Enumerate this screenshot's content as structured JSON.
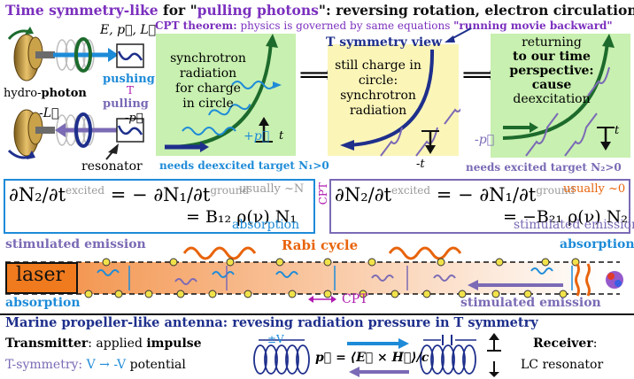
{
  "title": {
    "part1": "Time symmetry-like",
    "part2": " for \"",
    "part3": "pulling photons",
    "part4": "\": reversing rotation, electron circulation"
  },
  "left_panel": {
    "hydro": "hydro-",
    "photon": "photon",
    "e_p_l": "E, p⃗, L⃗",
    "pushing": "pushing",
    "t_symbol": "T",
    "pulling": "pulling",
    "neg_l": "-L⃗",
    "neg_p": "-p⃗",
    "resonator": "resonator"
  },
  "cpt_header": {
    "label": "CPT theorem:",
    "text": " physics is governed by same equations ",
    "quote": "\"running movie backward\""
  },
  "panel1": {
    "text": [
      "synchrotron",
      "radiation",
      "for charge",
      "in circle"
    ],
    "plus_p": "+p⃗",
    "t_label": "t",
    "footer": "needs deexcited target N₁>0"
  },
  "panel2": {
    "header": "T symmetry view",
    "text": [
      "still charge in",
      "circle:",
      "synchrotron",
      "radiation"
    ],
    "t_label": "-t"
  },
  "panel3": {
    "text": [
      "returning",
      "to our time",
      "perspective:",
      "cause",
      "deexcitation"
    ],
    "bold_words": [
      "our time",
      "perspective",
      "cause"
    ],
    "neg_p": "-p⃗",
    "t_label": "t",
    "footer": "needs excited target N₂>0"
  },
  "equation_left": {
    "lhs": "∂N₂/∂t",
    "sup1": "excited",
    "mid": "∂N₁/∂t",
    "sup2": "ground",
    "rhs": "= B₁₂ ρ(ν) N₁",
    "note": "usually ~N",
    "label": "absorption"
  },
  "equation_right": {
    "lhs": "∂N₂/∂t",
    "sup1": "excited",
    "mid": "∂N₁/∂t",
    "sup2": "ground",
    "rhs": "= −B₂₁ ρ(ν) N₂",
    "note": "usually ~0",
    "label": "stimulated emission"
  },
  "cpt_vertical": "CPT",
  "rabi": {
    "stimulated_top": "stimulated emission",
    "rabi_label": "Rabi cycle",
    "absorption_top": "absorption",
    "laser": "laser",
    "absorption_bottom": "absorption",
    "cpt_bottom": "CPT",
    "stimulated_bottom": "stimulated emission"
  },
  "bottom": {
    "headline": "Marine propeller-like antenna: revesing radiation pressure in T symmetry",
    "transmitter": "Transmitter",
    "transmitter_rest": ": applied ",
    "impulse": "impulse",
    "tsym_label": "T-symmetry: ",
    "tsym_v": "V → -V",
    "tsym_rest": " potential",
    "pm_v": "±V",
    "poynting": "p⃗ = ⟨E⃗ × H⃗⟩/c",
    "receiver": "Receiver",
    "receiver_colon": ":",
    "lc": "LC resonator"
  },
  "colors": {
    "purple": "#7b2fbe",
    "blue": "#1e8bd8",
    "orange": "#e8640c",
    "green_bg": "#c8f0b0",
    "yellow_bg": "#fbf5b8",
    "dark_green": "#1d6b2c",
    "navy": "#1e2f8c"
  }
}
